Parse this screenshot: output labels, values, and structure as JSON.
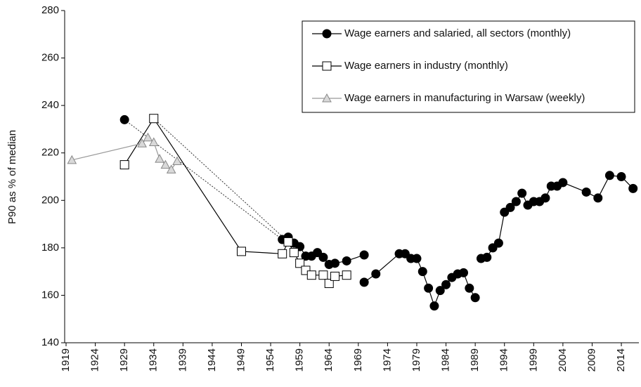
{
  "chart_data": {
    "type": "line",
    "y_label": "P90 as % of median",
    "xlim": [
      1919,
      2017
    ],
    "xticks": [
      1919,
      1924,
      1929,
      1934,
      1939,
      1944,
      1949,
      1954,
      1959,
      1964,
      1969,
      1974,
      1979,
      1984,
      1989,
      1994,
      1999,
      2004,
      2009,
      2014
    ],
    "ylim": [
      140,
      280
    ],
    "yticks": [
      140,
      160,
      180,
      200,
      220,
      240,
      260,
      280
    ],
    "legend": "top-right",
    "series": [
      {
        "name": "Wage earners and salaried, all sectors (monthly)",
        "color": "#000000",
        "marker": "circle",
        "marker_fill": "#000000",
        "x": [
          1929,
          null,
          1956,
          1957,
          1958,
          1959,
          1960,
          1961,
          1962,
          1963,
          1964,
          1965,
          1967,
          1970,
          null,
          1970,
          1972,
          1976,
          1977,
          1978,
          1979,
          1980,
          1981,
          1982,
          1983,
          1984,
          1985,
          1986,
          1987,
          1988,
          1989,
          null,
          1990,
          1991,
          1992,
          1993,
          1994,
          1995,
          1996,
          1997,
          1998,
          1999,
          2000,
          2001,
          2002,
          2003,
          2004,
          2008,
          2010,
          2012,
          2014,
          2016
        ],
        "values": [
          234,
          null,
          183.5,
          184.5,
          182,
          180.5,
          176.5,
          176.5,
          178,
          176,
          173,
          173.5,
          174.5,
          177,
          null,
          165.5,
          169,
          177.5,
          177.5,
          175.5,
          175.5,
          170,
          163,
          155.5,
          162,
          164.5,
          167.5,
          169,
          169.5,
          163,
          159,
          null,
          175.5,
          176,
          180,
          182,
          195,
          197,
          199.5,
          203,
          198,
          199.5,
          199.5,
          201,
          206,
          206,
          207.5,
          203.5,
          201,
          210.5,
          210,
          205
        ]
      },
      {
        "name": "Wage earners in industry (monthly)",
        "color": "#000000",
        "marker": "square",
        "marker_fill": "#ffffff",
        "x": [
          1929,
          1934,
          1949,
          1956,
          1957,
          1958,
          1959,
          1960,
          1961,
          1963,
          1964,
          1965,
          1967
        ],
        "values": [
          215,
          234.5,
          178.5,
          177.5,
          182.5,
          178,
          173.5,
          170.5,
          168.5,
          168.5,
          165,
          168,
          168.5
        ]
      },
      {
        "name": "Wage earners in manufacturing in Warsaw (weekly)",
        "color": "#999999",
        "marker": "triangle",
        "marker_fill": "#d9d9d9",
        "x": [
          1920,
          1932,
          1933,
          1934,
          1935,
          1936,
          1937,
          1938
        ],
        "values": [
          217,
          224,
          226.5,
          224.5,
          217.5,
          215,
          213,
          216.5
        ]
      }
    ]
  }
}
